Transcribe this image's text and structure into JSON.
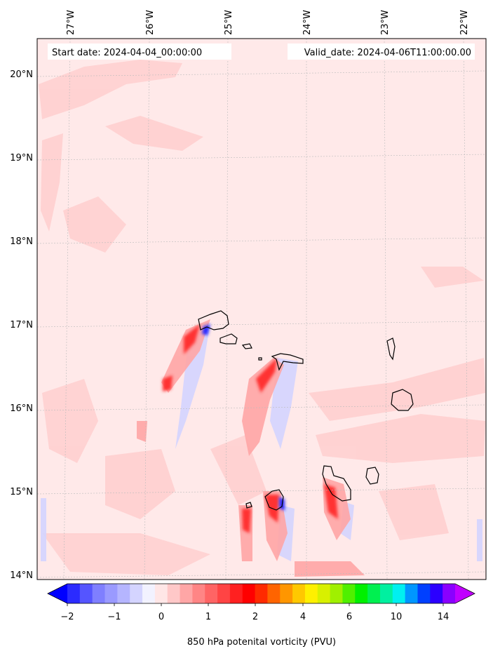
{
  "map": {
    "start_label": "Start date: 2024-04-04_00:00:00",
    "valid_label": "Valid_date: 2024-04-06T11:00:00.00",
    "lon_labels": [
      "27°W",
      "26°W",
      "25°W",
      "24°W",
      "23°W",
      "22°W"
    ],
    "lat_labels": [
      "20°N",
      "19°N",
      "18°N",
      "17°N",
      "16°N",
      "15°N",
      "14°N"
    ],
    "lon_values": [
      -27,
      -26,
      -25,
      -24,
      -23,
      -22
    ],
    "lat_values": [
      20,
      19,
      18,
      17,
      16,
      15,
      14
    ],
    "background_color": "#ffe9e9"
  },
  "colorbar": {
    "label": "850 hPa potenital vorticity (PVU)",
    "tick_labels": [
      "−2",
      "−1",
      "0",
      "1",
      "2",
      "4",
      "6",
      "10",
      "14"
    ],
    "colors": [
      "#0000ff",
      "#2b2bff",
      "#5555ff",
      "#7f7fff",
      "#9a9aff",
      "#b5b5ff",
      "#d4d4ff",
      "#f2f2ff",
      "#ffe6e6",
      "#ffc8c8",
      "#ffa6a6",
      "#ff8585",
      "#ff6464",
      "#ff4444",
      "#ff2020",
      "#ff0000",
      "#ff2a00",
      "#ff6400",
      "#ff9600",
      "#ffc800",
      "#fff000",
      "#d8f000",
      "#a0f000",
      "#50f000",
      "#00f000",
      "#00f050",
      "#00f0a0",
      "#00f0f0",
      "#0096ff",
      "#0040ff",
      "#2b00ff",
      "#8a00ff",
      "#c000ff"
    ]
  }
}
